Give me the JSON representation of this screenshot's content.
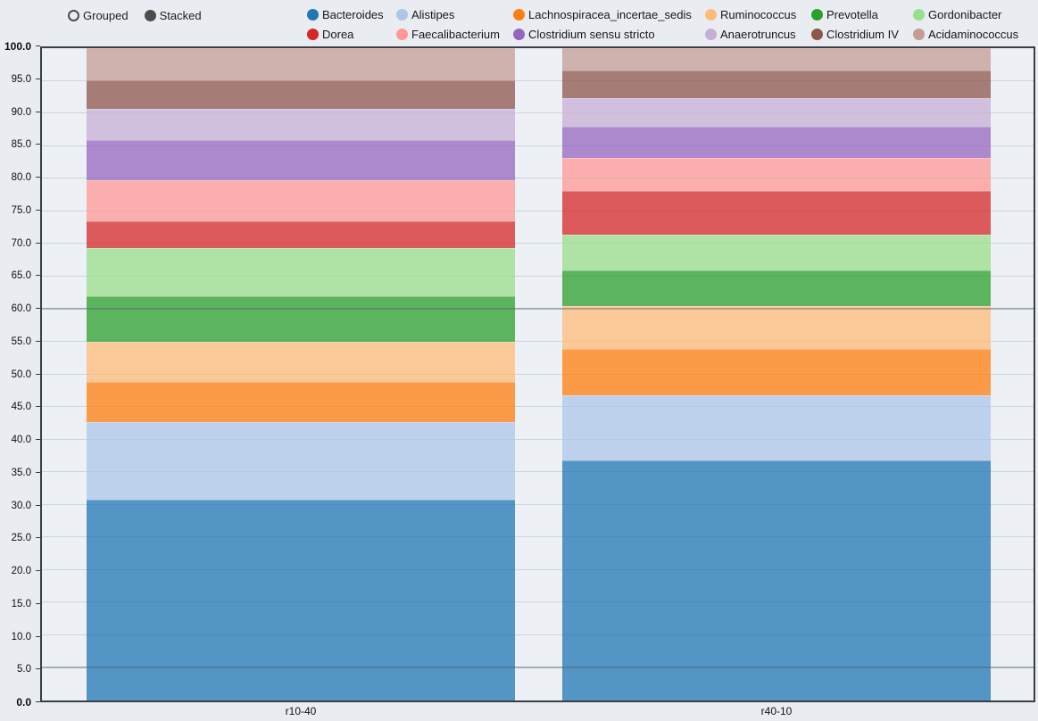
{
  "controls": {
    "mode_options": [
      {
        "label": "Grouped",
        "selected": false
      },
      {
        "label": "Stacked",
        "selected": true
      }
    ]
  },
  "chart_data": {
    "type": "bar",
    "stacked": true,
    "orientation": "vertical",
    "title": "",
    "xlabel": "",
    "ylabel": "",
    "categories": [
      "r10-40",
      "r40-10"
    ],
    "series": [
      {
        "name": "Bacteroides",
        "color": "#1f77b4",
        "values": [
          30.8,
          36.8
        ]
      },
      {
        "name": "Alistipes",
        "color": "#aec7e8",
        "values": [
          11.9,
          10.0
        ]
      },
      {
        "name": "Lachnospiracea_incertae_sedis",
        "color": "#ff7f0e",
        "values": [
          6.1,
          7.1
        ]
      },
      {
        "name": "Ruminococcus",
        "color": "#ffbb78",
        "values": [
          6.2,
          6.6
        ]
      },
      {
        "name": "Prevotella",
        "color": "#2ca02c",
        "values": [
          7.0,
          5.5
        ]
      },
      {
        "name": "Gordonibacter",
        "color": "#98df8a",
        "values": [
          7.4,
          5.4
        ]
      },
      {
        "name": "Dorea",
        "color": "#d62728",
        "values": [
          4.1,
          6.7
        ]
      },
      {
        "name": "Faecalibacterium",
        "color": "#ff9896",
        "values": [
          6.2,
          5.1
        ]
      },
      {
        "name": "Clostridium sensu stricto",
        "color": "#9467bd",
        "values": [
          6.2,
          4.7
        ]
      },
      {
        "name": "Anaerotruncus",
        "color": "#c5b0d5",
        "values": [
          4.8,
          4.5
        ]
      },
      {
        "name": "Clostridium IV",
        "color": "#8c564b",
        "values": [
          4.4,
          4.2
        ]
      },
      {
        "name": "Acidaminococcus",
        "color": "#c49c94",
        "values": [
          4.9,
          3.4
        ]
      }
    ],
    "ylim": [
      0,
      100
    ],
    "ytick_step": 5,
    "ytick_labels": [
      "0.0",
      "5.0",
      "10.0",
      "15.0",
      "20.0",
      "25.0",
      "30.0",
      "35.0",
      "40.0",
      "45.0",
      "50.0",
      "55.0",
      "60.0",
      "65.0",
      "70.0",
      "75.0",
      "80.0",
      "85.0",
      "90.0",
      "95.0",
      "100.0"
    ],
    "reference_lines": [
      5,
      60
    ],
    "grid": true,
    "legend_position": "top",
    "bar_opacity": 0.75
  }
}
